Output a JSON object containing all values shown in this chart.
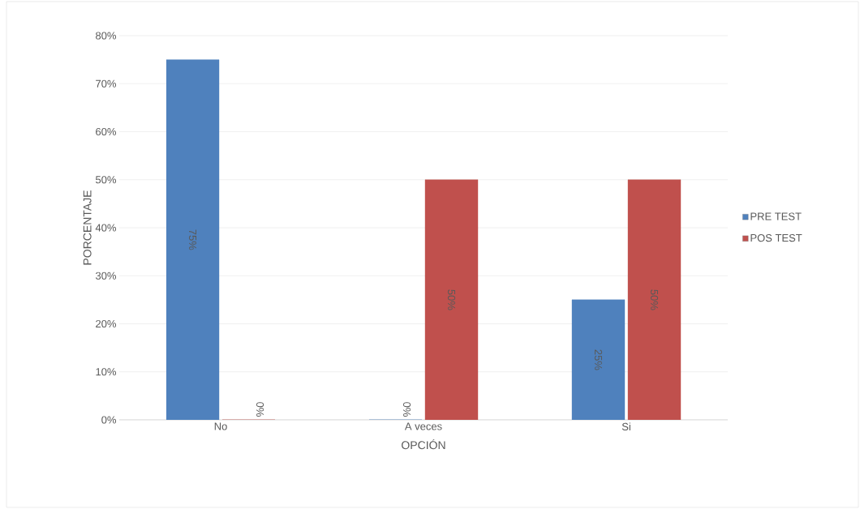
{
  "chart_data": {
    "type": "bar",
    "xlabel": "OPCIÓN",
    "ylabel": "PORCENTAJE",
    "categories": [
      "No",
      "A veces",
      "Si"
    ],
    "series": [
      {
        "name": "PRE TEST",
        "color": "#4f81bd",
        "values": [
          75,
          0,
          25
        ],
        "value_labels": [
          "75%",
          "0%",
          "25%"
        ]
      },
      {
        "name": "POS TEST",
        "color": "#c0504d",
        "values": [
          0,
          50,
          50
        ],
        "value_labels": [
          "0%",
          "50%",
          "50%"
        ]
      }
    ],
    "ylim": [
      0,
      80
    ],
    "yticks": [
      {
        "value": 0,
        "label": "0%"
      },
      {
        "value": 10,
        "label": "10%"
      },
      {
        "value": 20,
        "label": "20%"
      },
      {
        "value": 30,
        "label": "30%"
      },
      {
        "value": 40,
        "label": "40%"
      },
      {
        "value": 50,
        "label": "50%"
      },
      {
        "value": 60,
        "label": "60%"
      },
      {
        "value": 70,
        "label": "70%"
      },
      {
        "value": 80,
        "label": "80%"
      }
    ],
    "grid": "y",
    "legend": "right"
  }
}
